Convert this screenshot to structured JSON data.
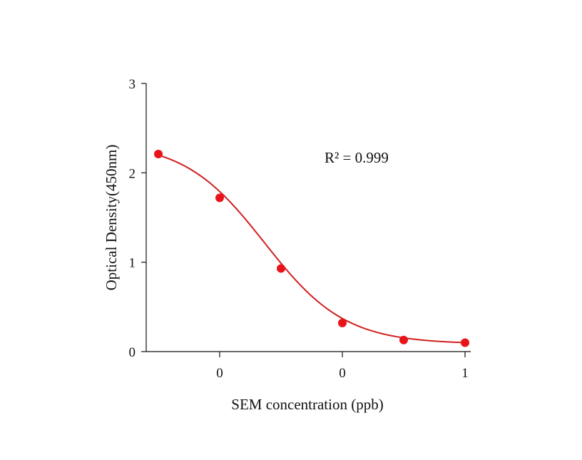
{
  "chart_data": {
    "type": "line",
    "title": "",
    "xlabel": "SEM concentration (ppb)",
    "ylabel": "Optical Density(450nm)",
    "annotation": "R² = 0.999",
    "x_tick_labels": [
      "0",
      "0",
      "1"
    ],
    "y_ticks": [
      0,
      1,
      2,
      3
    ],
    "ylim": [
      0,
      3
    ],
    "grid": false,
    "legend": "none",
    "marker_color": "#e8141a",
    "line_color": "#d01f1f",
    "series": [
      {
        "points": [
          {
            "x": 0.025,
            "y": 2.21
          },
          {
            "x": 0.05,
            "y": 1.72
          },
          {
            "x": 0.1,
            "y": 0.93
          },
          {
            "x": 0.2,
            "y": 0.32
          },
          {
            "x": 0.4,
            "y": 0.13
          },
          {
            "x": 0.8,
            "y": 0.1
          }
        ]
      }
    ]
  }
}
